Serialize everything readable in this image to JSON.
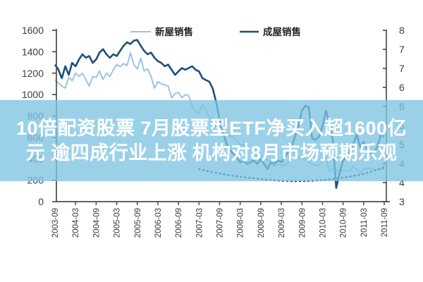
{
  "page": {
    "background": "#ffffff"
  },
  "overlay": {
    "lines": [
      "10倍配资股票 7月股票型ETF净买入超1600亿",
      "元 逾四成行业上涨 机构对8月市场预期乐观"
    ],
    "band_color_rgba": "rgba(126,196,226,0.78)",
    "text_color": "#ffffff"
  },
  "chart_data": {
    "type": "line",
    "title": "",
    "grid": false,
    "legend_position": "top",
    "legend": [
      {
        "label": "新屋销售",
        "color": "#9dc3e6"
      },
      {
        "label": "成屋销售",
        "color": "#1f4e79"
      }
    ],
    "x_axis": {
      "tick_labels": [
        "2003-09",
        "2004-03",
        "2004-09",
        "2005-03",
        "2005-09",
        "2006-03",
        "2006-09",
        "2007-03",
        "2007-09",
        "2008-03",
        "2008-09",
        "2009-03",
        "2009-09",
        "2010-03",
        "2010-09",
        "2011-03",
        "2011-09"
      ],
      "months_total": 97,
      "label_rotation_deg": -90
    },
    "left_axis": {
      "min": 0,
      "max": 1600,
      "step": 200,
      "tick_labels": [
        "1600",
        "1400",
        "1200",
        "1000",
        "800",
        "600",
        "400",
        "200",
        "0"
      ]
    },
    "right_axis": {
      "min": 3,
      "max": 8,
      "tick_labels": [
        "8",
        "7",
        "7",
        "6",
        "6",
        "5",
        "5",
        "4",
        "4",
        "3"
      ]
    },
    "series": [
      {
        "name": "新屋销售",
        "axis": "left",
        "color": "#9dc3e6",
        "stroke_width": 2,
        "style": "solid",
        "values": [
          1140,
          1105,
          1080,
          1060,
          1160,
          1130,
          1200,
          1170,
          1200,
          1140,
          1080,
          1170,
          1160,
          1220,
          1140,
          1200,
          1170,
          1230,
          1280,
          1260,
          1290,
          1270,
          1390,
          1280,
          1240,
          1340,
          1220,
          1240,
          1170,
          1060,
          1120,
          1100,
          1090,
          1080,
          970,
          1010,
          1020,
          970,
          1000,
          990,
          890,
          840,
          830,
          910,
          860,
          790,
          780,
          700,
          690,
          720,
          630,
          610,
          600,
          570,
          530,
          530,
          500,
          490,
          480,
          450,
          440,
          410,
          390,
          370,
          330,
          350,
          340,
          340,
          370,
          390,
          410,
          420,
          400,
          400,
          370,
          350,
          340,
          340,
          380,
          420,
          280,
          310,
          290,
          290,
          290,
          290,
          290,
          330,
          300,
          270,
          300,
          310,
          310,
          300,
          300,
          300,
          300
        ]
      },
      {
        "name": "成屋销售",
        "axis": "right",
        "color": "#1f4e79",
        "stroke_width": 2.6,
        "style": "solid",
        "values": [
          7.0,
          6.85,
          6.6,
          6.95,
          6.7,
          7.05,
          6.95,
          7.15,
          7.3,
          7.2,
          7.25,
          7.05,
          7.15,
          7.35,
          7.45,
          7.3,
          7.2,
          7.3,
          7.25,
          7.4,
          7.55,
          7.65,
          7.6,
          7.7,
          7.72,
          7.55,
          7.4,
          7.3,
          7.35,
          7.2,
          7.1,
          7.05,
          6.95,
          7.0,
          6.85,
          6.7,
          6.8,
          6.9,
          6.85,
          6.9,
          6.95,
          6.85,
          6.8,
          6.6,
          6.55,
          6.5,
          6.3,
          5.9,
          5.4,
          5.0,
          4.7,
          4.5,
          4.4,
          4.3,
          4.15,
          4.2,
          4.1,
          4.15,
          4.2,
          4.1,
          4.25,
          4.1,
          3.95,
          4.15,
          4.1,
          4.2,
          4.15,
          4.3,
          4.45,
          4.6,
          4.9,
          5.2,
          5.65,
          5.8,
          5.75,
          4.85,
          4.8,
          4.9,
          5.2,
          5.65,
          5.3,
          4.8,
          3.4,
          3.85,
          4.2,
          4.3,
          4.5,
          4.7,
          4.95,
          4.6,
          4.75,
          4.5,
          4.4,
          4.45,
          4.6,
          4.95,
          4.9
        ]
      },
      {
        "name": "trend-dotted",
        "axis": "right",
        "color": "#17375e",
        "stroke_width": 2.6,
        "style": "dotted",
        "points": [
          [
            42,
            3.95
          ],
          [
            45,
            3.88
          ],
          [
            48,
            3.82
          ],
          [
            51,
            3.77
          ],
          [
            54,
            3.73
          ],
          [
            57,
            3.69
          ],
          [
            60,
            3.66
          ],
          [
            63,
            3.63
          ],
          [
            66,
            3.61
          ],
          [
            69,
            3.6
          ],
          [
            72,
            3.6
          ],
          [
            75,
            3.61
          ],
          [
            78,
            3.63
          ],
          [
            81,
            3.66
          ],
          [
            84,
            3.7
          ],
          [
            87,
            3.75
          ],
          [
            90,
            3.81
          ],
          [
            93,
            3.9
          ],
          [
            96,
            4.0
          ]
        ]
      }
    ],
    "axis_color": "#4d4d4d",
    "tick_label_color": "#3c3c3c",
    "legend_text_color": "#262626"
  }
}
